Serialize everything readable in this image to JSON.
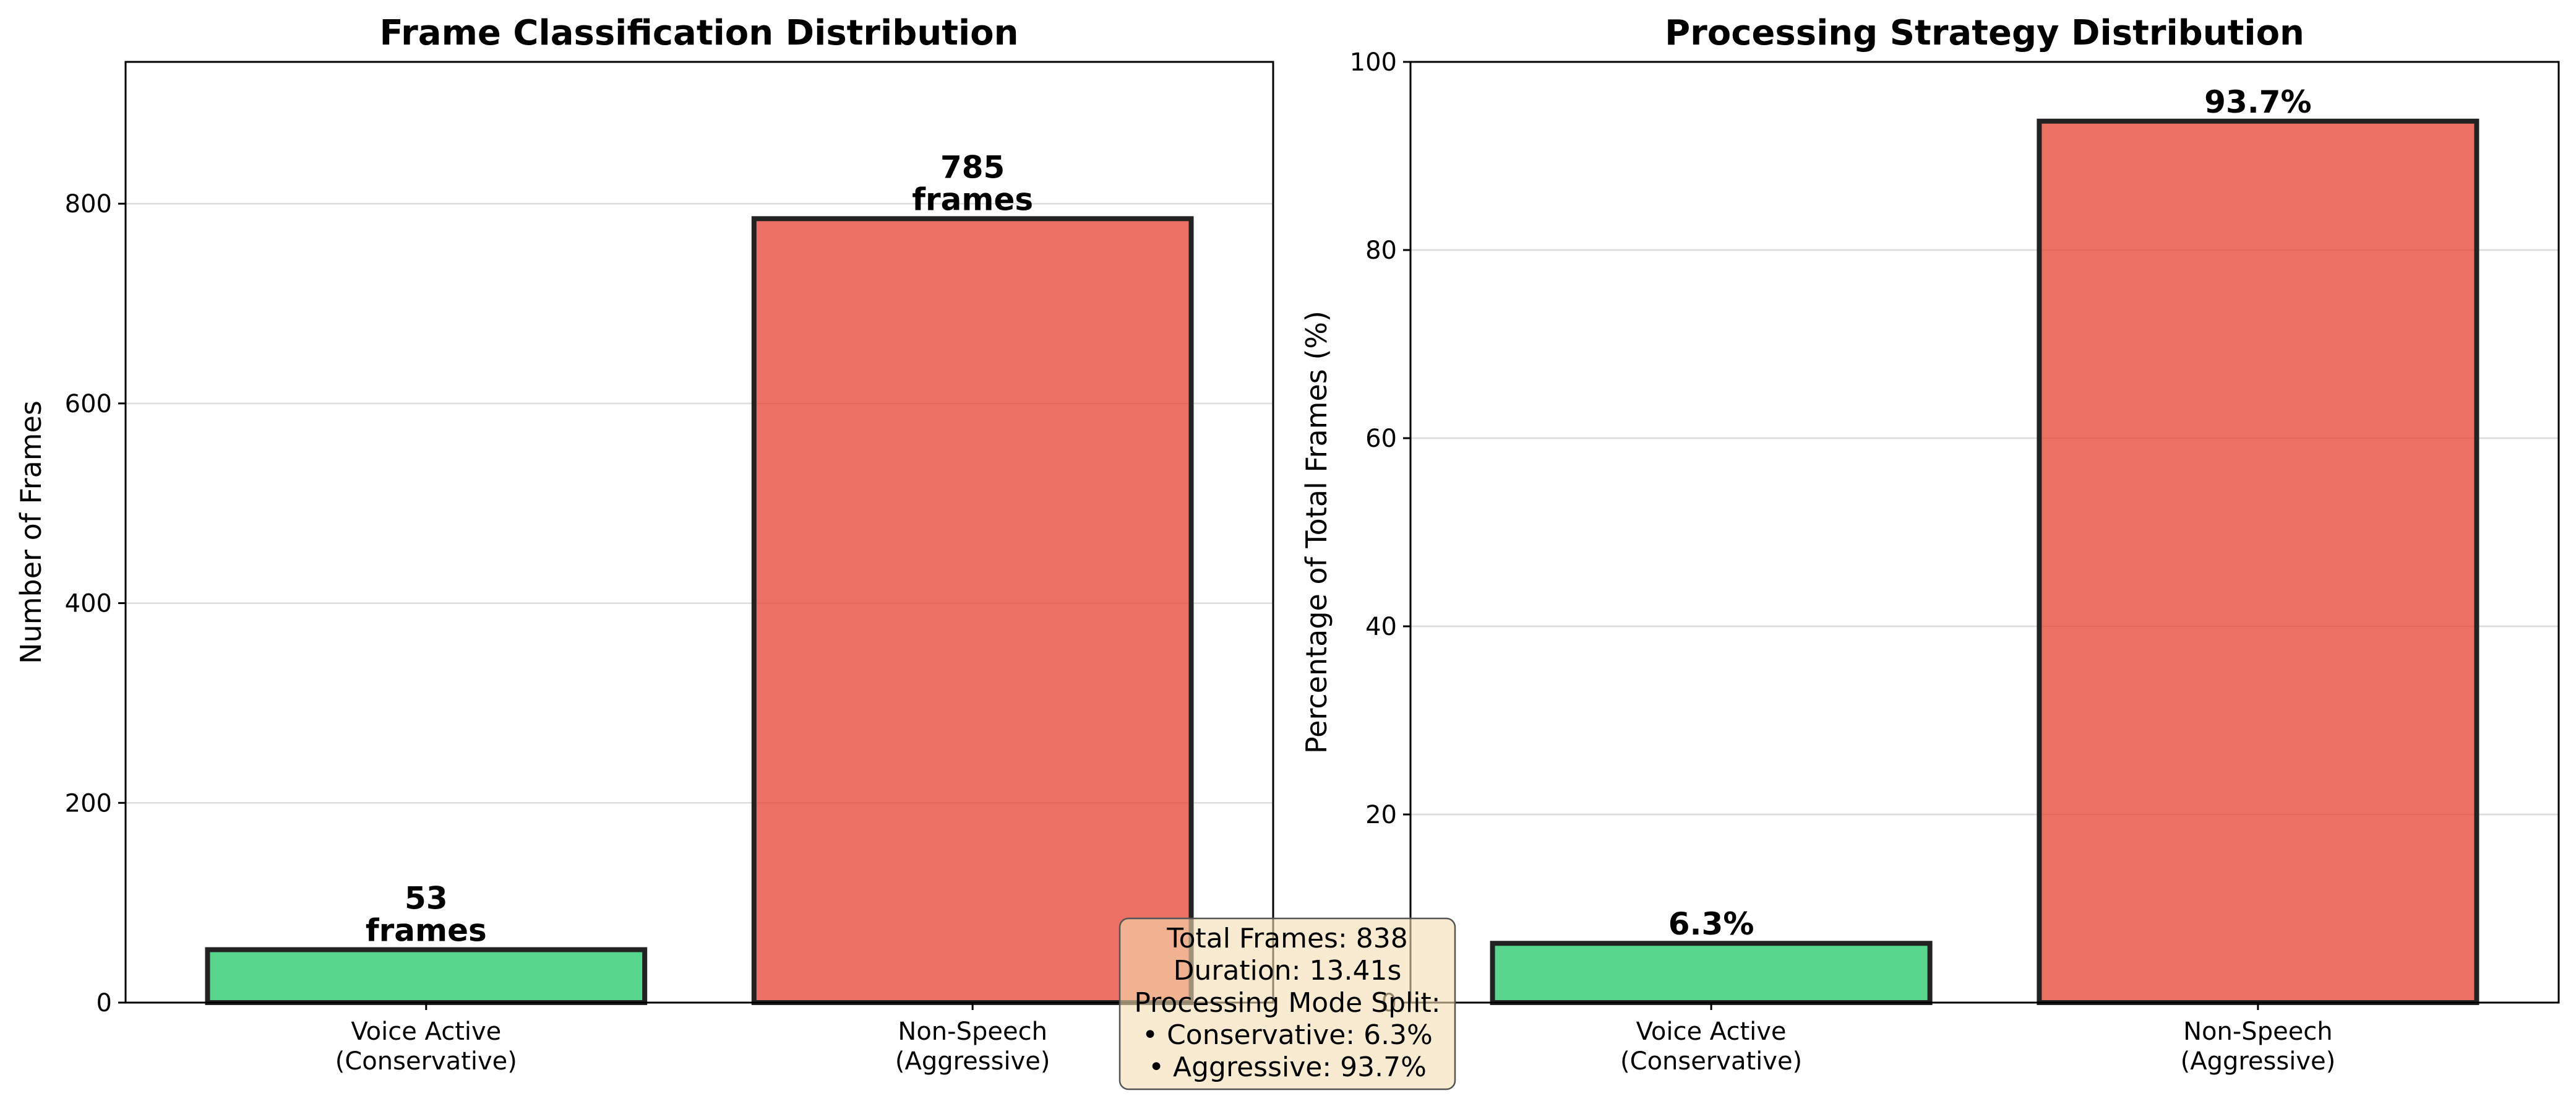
{
  "chart_data": [
    {
      "type": "bar",
      "title": "Frame Classification Distribution",
      "ylabel": "Number of Frames",
      "ylim": [
        0,
        942
      ],
      "yticks": [
        0,
        200,
        400,
        600,
        800
      ],
      "grid": "y",
      "categories": [
        [
          "Voice Active",
          "(Conservative)"
        ],
        [
          "Non-Speech",
          "(Aggressive)"
        ]
      ],
      "values": [
        53,
        785
      ],
      "data_labels": [
        [
          "53",
          "frames"
        ],
        [
          "785",
          "frames"
        ]
      ],
      "colors": [
        "#2ecc71",
        "#e74c3c"
      ]
    },
    {
      "type": "bar",
      "title": "Processing Strategy Distribution",
      "ylabel": "Percentage of Total Frames (%)",
      "ylim": [
        0,
        100
      ],
      "yticks": [
        0,
        20,
        40,
        60,
        80,
        100
      ],
      "grid": "y",
      "categories": [
        [
          "Voice Active",
          "(Conservative)"
        ],
        [
          "Non-Speech",
          "(Aggressive)"
        ]
      ],
      "values": [
        6.3,
        93.7
      ],
      "data_labels": [
        [
          "6.3%"
        ],
        [
          "93.7%"
        ]
      ],
      "colors": [
        "#2ecc71",
        "#e74c3c"
      ]
    }
  ],
  "summary_box": {
    "lines": [
      "Total Frames: 838",
      "Duration: 13.41s",
      "Processing Mode Split:",
      "• Conservative: 6.3%",
      "• Aggressive: 93.7%"
    ],
    "background": "#f5deb3"
  }
}
